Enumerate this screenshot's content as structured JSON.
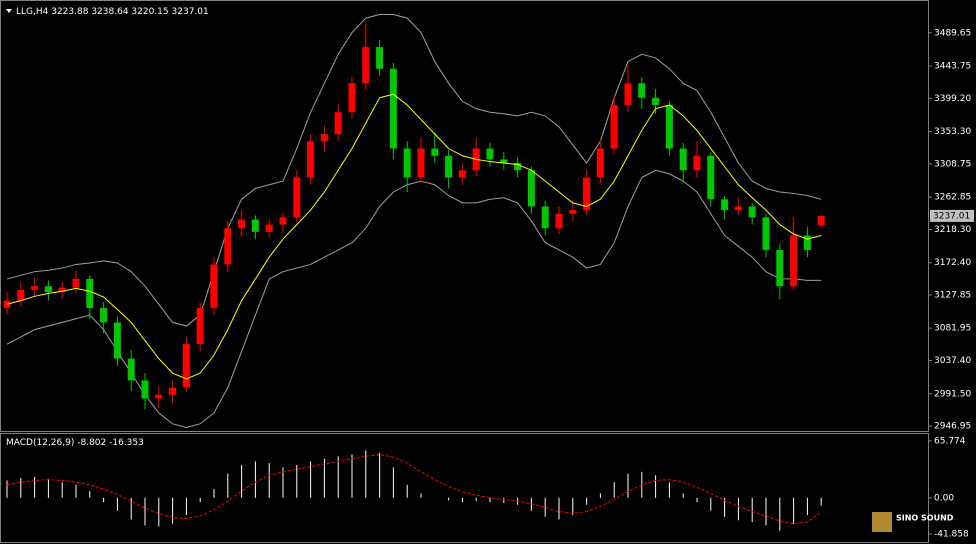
{
  "chart_data": [
    {
      "type": "candlestick",
      "title": "LLG,H4",
      "up_color": "#ff0000",
      "down_color": "#00c800",
      "wick_color": "#dddddd",
      "ylim": [
        2941.5,
        3533.6
      ],
      "yticks": [
        3489.65,
        3443.75,
        {
          "value": 3399.2,
          "label": "3399.20"
        },
        {
          "value": 3353.3,
          "label": "3353.30"
        },
        3308.75,
        3262.85,
        {
          "value": 3218.3,
          "label": "3218.30"
        },
        {
          "value": 3172.4,
          "label": "3172.40"
        },
        3127.85,
        3081.95,
        {
          "value": 3037.4,
          "label": "3037.40"
        },
        {
          "value": 2991.5,
          "label": "2991.50"
        },
        2946.95
      ],
      "ohlc": [
        [
          3110,
          3132,
          3100,
          3120
        ],
        [
          3120,
          3145,
          3112,
          3135
        ],
        [
          3135,
          3152,
          3125,
          3140
        ],
        [
          3140,
          3148,
          3120,
          3132
        ],
        [
          3132,
          3146,
          3122,
          3138
        ],
        [
          3138,
          3162,
          3130,
          3150
        ],
        [
          3150,
          3155,
          3095,
          3110
        ],
        [
          3110,
          3118,
          3075,
          3090
        ],
        [
          3090,
          3098,
          3030,
          3040
        ],
        [
          3040,
          3052,
          2995,
          3010
        ],
        [
          3010,
          3020,
          2970,
          2985
        ],
        [
          2985,
          3002,
          2972,
          2990
        ],
        [
          2990,
          3010,
          2978,
          3000
        ],
        [
          3000,
          3070,
          2995,
          3060
        ],
        [
          3060,
          3118,
          3050,
          3110
        ],
        [
          3110,
          3180,
          3100,
          3170
        ],
        [
          3170,
          3230,
          3160,
          3220
        ],
        [
          3220,
          3245,
          3208,
          3232
        ],
        [
          3232,
          3238,
          3205,
          3215
        ],
        [
          3215,
          3232,
          3208,
          3225
        ],
        [
          3225,
          3242,
          3215,
          3235
        ],
        [
          3235,
          3300,
          3228,
          3290
        ],
        [
          3290,
          3350,
          3280,
          3340
        ],
        [
          3340,
          3362,
          3325,
          3350
        ],
        [
          3350,
          3392,
          3340,
          3380
        ],
        [
          3380,
          3430,
          3372,
          3420
        ],
        [
          3420,
          3502,
          3410,
          3470
        ],
        [
          3470,
          3480,
          3430,
          3440
        ],
        [
          3440,
          3448,
          3315,
          3330
        ],
        [
          3330,
          3340,
          3270,
          3290
        ],
        [
          3290,
          3345,
          3282,
          3330
        ],
        [
          3330,
          3352,
          3310,
          3320
        ],
        [
          3320,
          3328,
          3275,
          3290
        ],
        [
          3290,
          3310,
          3280,
          3300
        ],
        [
          3300,
          3345,
          3292,
          3330
        ],
        [
          3330,
          3338,
          3305,
          3315
        ],
        [
          3315,
          3325,
          3300,
          3310
        ],
        [
          3310,
          3318,
          3290,
          3300
        ],
        [
          3300,
          3305,
          3240,
          3250
        ],
        [
          3250,
          3258,
          3210,
          3220
        ],
        [
          3220,
          3250,
          3212,
          3240
        ],
        [
          3240,
          3258,
          3230,
          3245
        ],
        [
          3245,
          3300,
          3238,
          3290
        ],
        [
          3290,
          3342,
          3282,
          3330
        ],
        [
          3330,
          3402,
          3322,
          3390
        ],
        [
          3390,
          3445,
          3380,
          3420
        ],
        [
          3420,
          3428,
          3385,
          3400
        ],
        [
          3400,
          3412,
          3378,
          3390
        ],
        [
          3390,
          3395,
          3320,
          3330
        ],
        [
          3330,
          3338,
          3285,
          3300
        ],
        [
          3300,
          3340,
          3290,
          3320
        ],
        [
          3320,
          3325,
          3250,
          3260
        ],
        [
          3260,
          3265,
          3232,
          3245
        ],
        [
          3245,
          3262,
          3238,
          3250
        ],
        [
          3250,
          3255,
          3225,
          3235
        ],
        [
          3235,
          3240,
          3180,
          3190
        ],
        [
          3190,
          3198,
          3122,
          3140
        ],
        [
          3140,
          3235,
          3135,
          3210
        ],
        [
          3210,
          3222,
          3180,
          3190
        ],
        [
          3223.88,
          3238.64,
          3220.15,
          3237.01
        ]
      ],
      "upper_band": {
        "color": "#a0a0a0",
        "values": [
          3150,
          3155,
          3160,
          3162,
          3165,
          3170,
          3172,
          3175,
          3172,
          3160,
          3140,
          3115,
          3090,
          3085,
          3100,
          3160,
          3220,
          3260,
          3275,
          3280,
          3285,
          3330,
          3380,
          3420,
          3460,
          3490,
          3510,
          3515,
          3515,
          3510,
          3490,
          3450,
          3420,
          3395,
          3385,
          3380,
          3378,
          3375,
          3380,
          3375,
          3360,
          3335,
          3310,
          3340,
          3400,
          3450,
          3460,
          3455,
          3440,
          3420,
          3410,
          3380,
          3345,
          3310,
          3285,
          3275,
          3270,
          3268,
          3265,
          3260
        ]
      },
      "lower_band": {
        "color": "#a0a0a0",
        "values": [
          3060,
          3070,
          3080,
          3085,
          3090,
          3095,
          3100,
          3080,
          3050,
          3020,
          2990,
          2965,
          2950,
          2945,
          2950,
          2965,
          3000,
          3050,
          3100,
          3150,
          3160,
          3165,
          3170,
          3180,
          3190,
          3200,
          3220,
          3250,
          3270,
          3280,
          3285,
          3280,
          3265,
          3255,
          3255,
          3260,
          3262,
          3255,
          3230,
          3200,
          3190,
          3180,
          3165,
          3170,
          3200,
          3250,
          3290,
          3300,
          3295,
          3285,
          3270,
          3240,
          3210,
          3195,
          3180,
          3160,
          3150,
          3150,
          3148,
          3148
        ]
      },
      "ma": {
        "color": "#ffff00",
        "values": [
          3115,
          3120,
          3126,
          3130,
          3133,
          3137,
          3133,
          3125,
          3108,
          3090,
          3065,
          3040,
          3020,
          3012,
          3020,
          3045,
          3080,
          3120,
          3150,
          3180,
          3205,
          3225,
          3245,
          3270,
          3300,
          3330,
          3365,
          3400,
          3405,
          3390,
          3370,
          3350,
          3330,
          3320,
          3315,
          3312,
          3310,
          3308,
          3300,
          3285,
          3270,
          3255,
          3250,
          3260,
          3285,
          3320,
          3355,
          3385,
          3390,
          3375,
          3355,
          3330,
          3305,
          3280,
          3262,
          3245,
          3225,
          3212,
          3205,
          3210
        ]
      }
    },
    {
      "type": "macd",
      "title": "MACD(12,26,9)",
      "ylim": [
        -48.8,
        72.6
      ],
      "yticks": [
        65.774,
        {
          "value": 0,
          "label": "0.00"
        },
        -41.858
      ],
      "histogram": {
        "color": "#ffffff",
        "values": [
          20,
          23,
          24,
          22,
          18,
          15,
          8,
          -5,
          -15,
          -25,
          -32,
          -33,
          -30,
          -20,
          -5,
          10,
          28,
          38,
          42,
          40,
          35,
          38,
          42,
          45,
          48,
          50,
          55,
          52,
          35,
          15,
          5,
          0,
          -3,
          -5,
          -4,
          -5,
          -6,
          -8,
          -15,
          -22,
          -25,
          -20,
          -8,
          5,
          18,
          28,
          30,
          26,
          18,
          5,
          -5,
          -15,
          -22,
          -26,
          -28,
          -32,
          -38,
          -30,
          -20,
          -8.802
        ]
      },
      "signal": {
        "color": "#ff0000",
        "values": [
          15,
          18,
          20,
          21,
          20,
          18,
          15,
          10,
          4,
          -4,
          -12,
          -18,
          -23,
          -24,
          -21,
          -14,
          -4,
          8,
          18,
          26,
          30,
          33,
          36,
          39,
          42,
          45,
          48,
          50,
          47,
          40,
          30,
          21,
          13,
          7,
          3,
          0,
          -2,
          -4,
          -7,
          -11,
          -16,
          -18,
          -16,
          -10,
          -2,
          7,
          15,
          20,
          21,
          18,
          12,
          5,
          -3,
          -10,
          -16,
          -21,
          -27,
          -30,
          -28,
          -16.353
        ]
      }
    }
  ],
  "watermark": "SINO SOUND"
}
